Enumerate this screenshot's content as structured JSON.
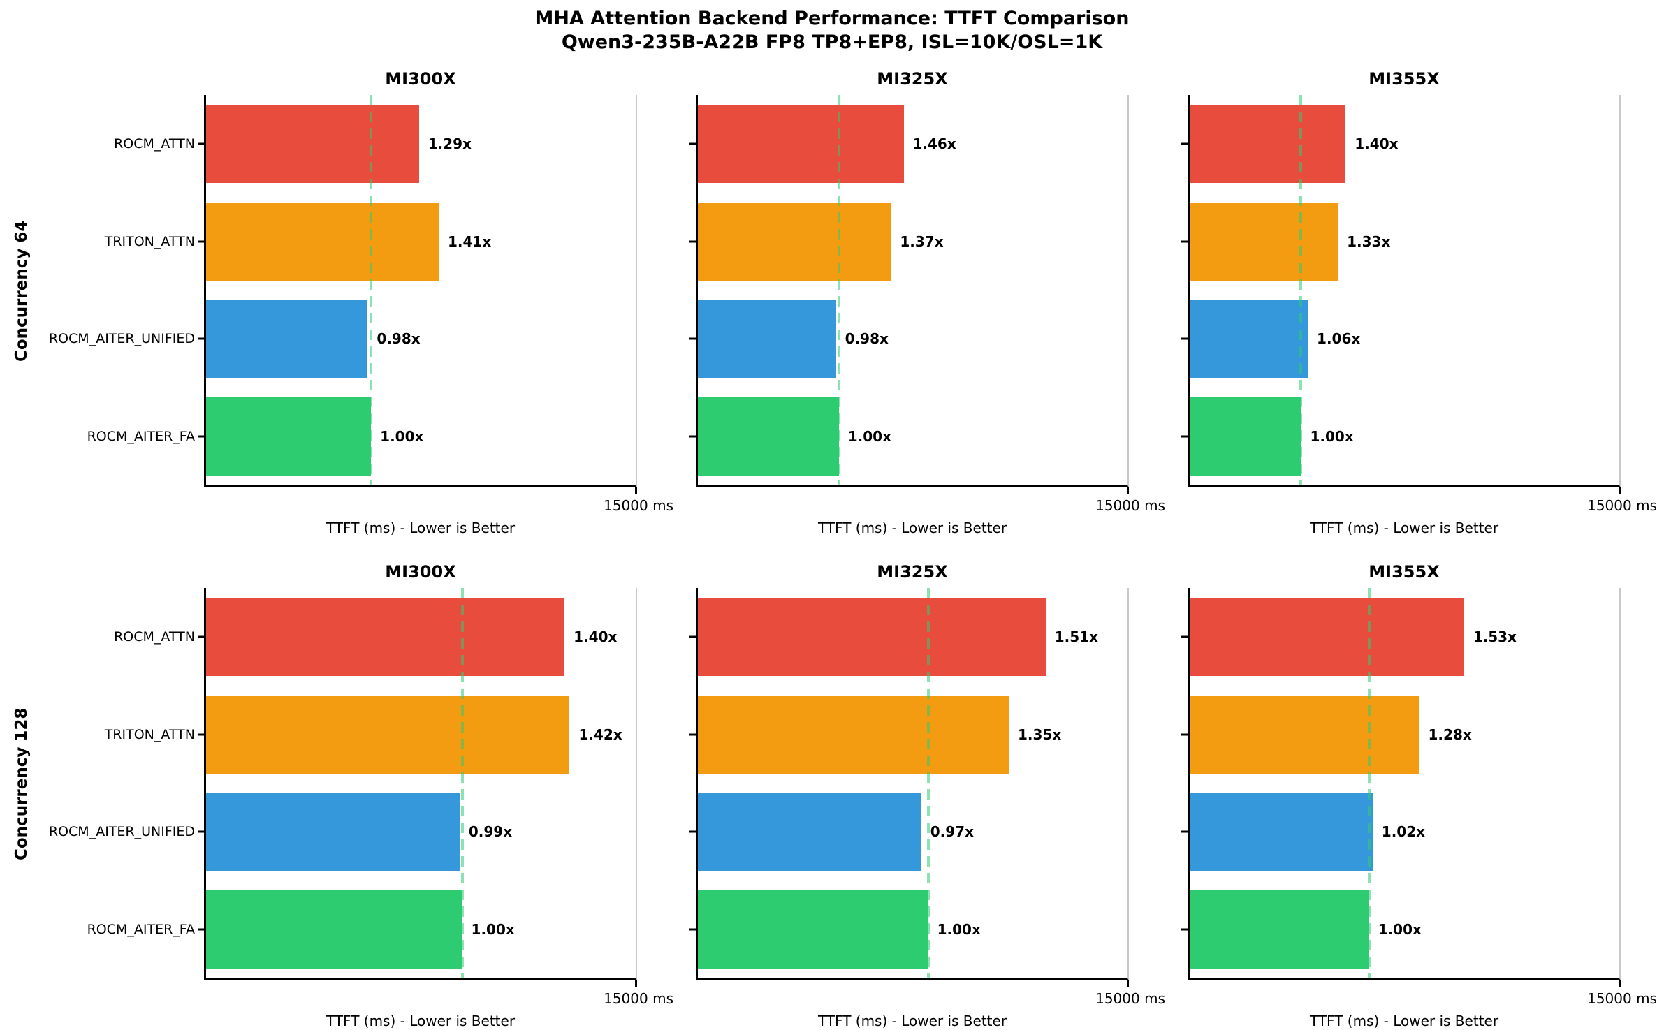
{
  "figure": {
    "title": "MHA Attention Backend Performance: TTFT Comparison",
    "subtitle": "Qwen3-235B-A22B FP8 TP8+EP8, ISL=10K/OSL=1K"
  },
  "chart_data": {
    "type": "bar",
    "orientation": "horizontal",
    "grid": {
      "rows": 2,
      "cols": 3
    },
    "row_labels": [
      "Concurrency 64",
      "Concurrency 128"
    ],
    "col_titles": [
      "MI300X",
      "MI325X",
      "MI355X"
    ],
    "categories": [
      "ROCM_ATTN",
      "TRITON_ATTN",
      "ROCM_AITER_UNIFIED",
      "ROCM_AITER_FA"
    ],
    "bar_colors": [
      "#e74c3c",
      "#f39c12",
      "#3498db",
      "#2ecc71"
    ],
    "xlabel": "TTFT (ms) - Lower is Better",
    "xlim": [
      0,
      15000
    ],
    "x_tick_label": "15000 ms",
    "baseline_marker": {
      "style": "dashed",
      "color": "#2ecc71",
      "opacity": 0.55,
      "at_speedup": 1.0,
      "reference_category": "ROCM_AITER_FA"
    },
    "subplots": [
      {
        "row": "Concurrency 64",
        "gpu": "MI300X",
        "speedups": [
          1.29,
          1.41,
          0.98,
          1.0
        ],
        "speedup_labels": [
          "1.29x",
          "1.41x",
          "0.98x",
          "1.00x"
        ],
        "ttft_ms_est": [
          7430,
          8120,
          5645,
          5760
        ],
        "baseline_ms_est": 5760
      },
      {
        "row": "Concurrency 64",
        "gpu": "MI325X",
        "speedups": [
          1.46,
          1.37,
          0.98,
          1.0
        ],
        "speedup_labels": [
          "1.46x",
          "1.37x",
          "0.98x",
          "1.00x"
        ],
        "ttft_ms_est": [
          7185,
          6740,
          4820,
          4920
        ],
        "baseline_ms_est": 4920
      },
      {
        "row": "Concurrency 64",
        "gpu": "MI355X",
        "speedups": [
          1.4,
          1.33,
          1.06,
          1.0
        ],
        "speedup_labels": [
          "1.40x",
          "1.33x",
          "1.06x",
          "1.00x"
        ],
        "ttft_ms_est": [
          5445,
          5175,
          4125,
          3890
        ],
        "baseline_ms_est": 3890
      },
      {
        "row": "Concurrency 128",
        "gpu": "MI300X",
        "speedups": [
          1.4,
          1.42,
          0.99,
          1.0
        ],
        "speedup_labels": [
          "1.40x",
          "1.42x",
          "0.99x",
          "1.00x"
        ],
        "ttft_ms_est": [
          12515,
          12695,
          8850,
          8940
        ],
        "baseline_ms_est": 8940
      },
      {
        "row": "Concurrency 128",
        "gpu": "MI325X",
        "speedups": [
          1.51,
          1.35,
          0.97,
          1.0
        ],
        "speedup_labels": [
          "1.51x",
          "1.35x",
          "0.97x",
          "1.00x"
        ],
        "ttft_ms_est": [
          12140,
          10855,
          7800,
          8040
        ],
        "baseline_ms_est": 8040
      },
      {
        "row": "Concurrency 128",
        "gpu": "MI355X",
        "speedups": [
          1.53,
          1.28,
          1.02,
          1.0
        ],
        "speedup_labels": [
          "1.53x",
          "1.28x",
          "1.02x",
          "1.00x"
        ],
        "ttft_ms_est": [
          9580,
          8015,
          6385,
          6260
        ],
        "baseline_ms_est": 6260
      }
    ]
  }
}
